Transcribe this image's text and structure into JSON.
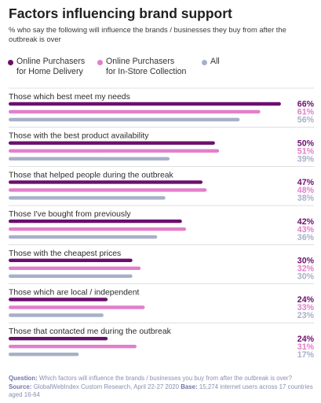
{
  "title": "Factors influencing brand support",
  "subtitle": "% who say the following will influence the brands / businesses they buy from after the outbreak is over",
  "colors": {
    "home": "#6b0f6b",
    "store": "#e27fc9",
    "all": "#a7b0c9",
    "all_text": "#a7b0c9"
  },
  "chart_data": {
    "type": "bar",
    "orientation": "horizontal",
    "xlim": [
      0,
      70
    ],
    "categories": [
      "Those which best meet my needs",
      "Those with the best product availability",
      "Those that helped people during the outbreak",
      "Those I've bought from previously",
      "Those with the cheapest prices",
      "Those which are local / independent",
      "Those that contacted me during the outbreak"
    ],
    "series": [
      {
        "name": "Online Purchasers for Home Delivery",
        "values": [
          66,
          50,
          47,
          42,
          30,
          24,
          24
        ]
      },
      {
        "name": "Online Purchasers for In-Store Collection",
        "values": [
          61,
          51,
          48,
          43,
          32,
          33,
          31
        ]
      },
      {
        "name": "All",
        "values": [
          56,
          39,
          38,
          36,
          30,
          23,
          17
        ]
      }
    ],
    "legend": "top"
  },
  "legend": {
    "home_line1": "Online Purchasers",
    "home_line2": "for Home Delivery",
    "store_line1": "Online Purchasers",
    "store_line2": "for In-Store Collection",
    "all": "All"
  },
  "footer": {
    "question_label": "Question:",
    "question_text": "Which factors will influence the brands / businesses you buy from after the outbreak is over?",
    "source_label": "Source:",
    "source_text": "GlobalWebIndex Custom Research, April 22-27 2020",
    "base_label": "Base:",
    "base_text": "15,274 internet users across 17 countries aged 16-64"
  }
}
